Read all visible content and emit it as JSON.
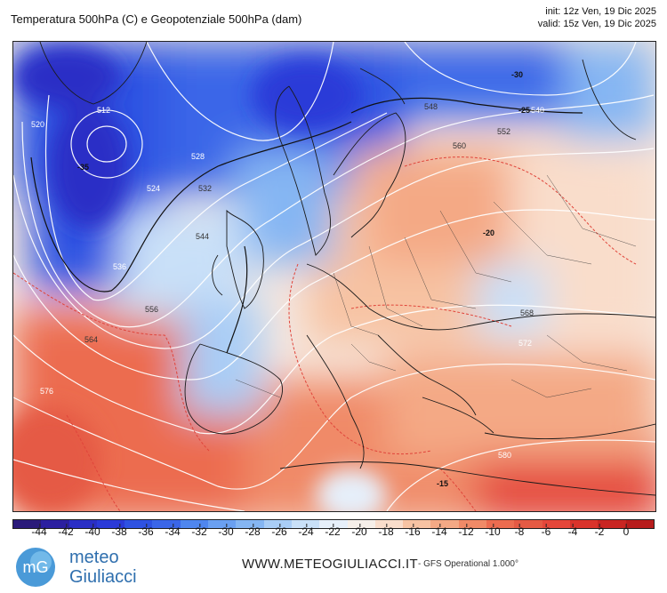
{
  "header": {
    "title": "Temperatura 500hPa (C) e Geopotenziale 500hPa (dam)",
    "init": "init: 12z Ven, 19 Dic 2025",
    "valid": "valid: 15z Ven, 19 Dic 2025"
  },
  "map": {
    "geopotential_labels": [
      "512",
      "520",
      "524",
      "528",
      "532",
      "536",
      "540",
      "544",
      "548",
      "552",
      "556",
      "560",
      "564",
      "568",
      "572",
      "576",
      "580"
    ],
    "temperature_labels": [
      "-35",
      "-30",
      "-25",
      "-20",
      "-15"
    ],
    "colors": {
      "very_cold": "#2a3ad8",
      "cold": "#4f86ee",
      "cool": "#a9cdf6",
      "neutral": "#f6efe9",
      "mild": "#f7c3a3",
      "warm": "#f08a67",
      "hot": "#e5473a"
    }
  },
  "colorbar": {
    "ticks": [
      "-44",
      "-42",
      "-40",
      "-38",
      "-36",
      "-34",
      "-32",
      "-30",
      "-28",
      "-26",
      "-24",
      "-22",
      "-20",
      "-18",
      "-16",
      "-14",
      "-12",
      "-10",
      "-8",
      "-6",
      "-4",
      "-2",
      "0"
    ],
    "colors": [
      "#2a1a7a",
      "#2b1fa0",
      "#2a2fc6",
      "#2a3ad8",
      "#2e52e2",
      "#3b66e8",
      "#4f86ee",
      "#6aa0f1",
      "#85b6f3",
      "#a9cdf6",
      "#c9e0f8",
      "#e6effa",
      "#f6efe9",
      "#f9ddcb",
      "#f7c3a3",
      "#f4a985",
      "#f08a67",
      "#ec6c50",
      "#e55a44",
      "#e5473a",
      "#d9332b",
      "#c92522",
      "#b71c1c"
    ]
  },
  "footer": {
    "brand_line1": "meteo",
    "brand_line2": "Giuliacci",
    "site": "WWW.METEOGIULIACCI.IT",
    "model": "- GFS Operational 1.000°"
  }
}
